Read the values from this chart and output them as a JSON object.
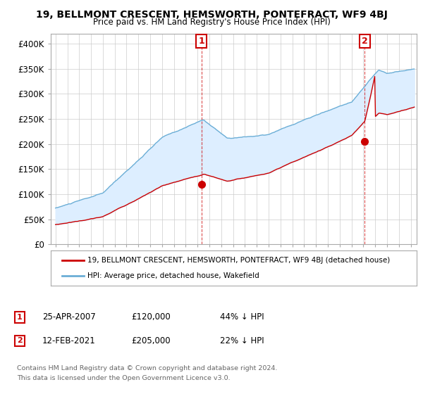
{
  "title": "19, BELLMONT CRESCENT, HEMSWORTH, PONTEFRACT, WF9 4BJ",
  "subtitle": "Price paid vs. HM Land Registry's House Price Index (HPI)",
  "ylabel_ticks": [
    "£0",
    "£50K",
    "£100K",
    "£150K",
    "£200K",
    "£250K",
    "£300K",
    "£350K",
    "£400K"
  ],
  "ytick_values": [
    0,
    50000,
    100000,
    150000,
    200000,
    250000,
    300000,
    350000,
    400000
  ],
  "ylim": [
    0,
    420000
  ],
  "xlim_start": 1994.6,
  "xlim_end": 2025.5,
  "hpi_color": "#6baed6",
  "hpi_fill_color": "#ddeeff",
  "price_color": "#cc0000",
  "sale1_date": "25-APR-2007",
  "sale1_price": 120000,
  "sale1_label": "44% ↓ HPI",
  "sale2_date": "12-FEB-2021",
  "sale2_price": 205000,
  "sale2_label": "22% ↓ HPI",
  "sale1_x": 2007.32,
  "sale2_x": 2021.12,
  "legend_line1": "19, BELLMONT CRESCENT, HEMSWORTH, PONTEFRACT, WF9 4BJ (detached house)",
  "legend_line2": "HPI: Average price, detached house, Wakefield",
  "footer1": "Contains HM Land Registry data © Crown copyright and database right 2024.",
  "footer2": "This data is licensed under the Open Government Licence v3.0.",
  "background_color": "#ffffff",
  "grid_color": "#cccccc"
}
